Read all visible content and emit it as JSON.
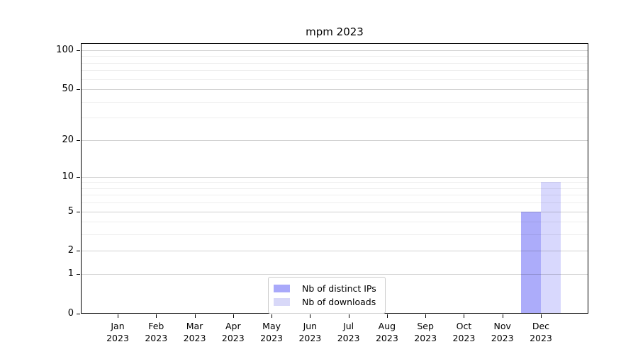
{
  "chart_data": {
    "type": "bar",
    "title": "mpm 2023",
    "categories": [
      "Jan 2023",
      "Feb 2023",
      "Mar 2023",
      "Apr 2023",
      "May 2023",
      "Jun 2023",
      "Jul 2023",
      "Aug 2023",
      "Sep 2023",
      "Oct 2023",
      "Nov 2023",
      "Dec 2023"
    ],
    "series": [
      {
        "name": "Nb of distinct IPs",
        "color": "#a9a9fa",
        "values": [
          0,
          0,
          0,
          0,
          0,
          0,
          0,
          0,
          0,
          0,
          0,
          5
        ]
      },
      {
        "name": "Nb of downloads",
        "color": "#d8d8f8",
        "values": [
          0,
          0,
          0,
          0,
          0,
          0,
          0,
          0,
          0,
          0,
          0,
          9
        ]
      }
    ],
    "xlabel": "",
    "ylabel": "",
    "y_scale": "log1p",
    "y_ticks": [
      100,
      50,
      20,
      10,
      5,
      2,
      1,
      0
    ],
    "y_tick_labels": [
      "100",
      "50",
      "20",
      "10",
      "5",
      "2",
      "1",
      "0"
    ],
    "ylim": [
      0,
      113
    ],
    "grid": "horizontal major and minor gridlines",
    "legend_position": "bottom-center inside plot"
  },
  "legend": {
    "entries": [
      {
        "label": "Nb of distinct IPs",
        "color": "#a9a9fa"
      },
      {
        "label": "Nb of downloads",
        "color": "#d8d8f8"
      }
    ]
  },
  "colors": {
    "bar_distinct_ips": "#a9a9fa",
    "bar_downloads": "#d8d8f8",
    "spine": "#000000",
    "grid_major": "#d1d1d1",
    "grid_minor": "#ededed",
    "legend_border": "#cccccc",
    "background": "#ffffff"
  }
}
